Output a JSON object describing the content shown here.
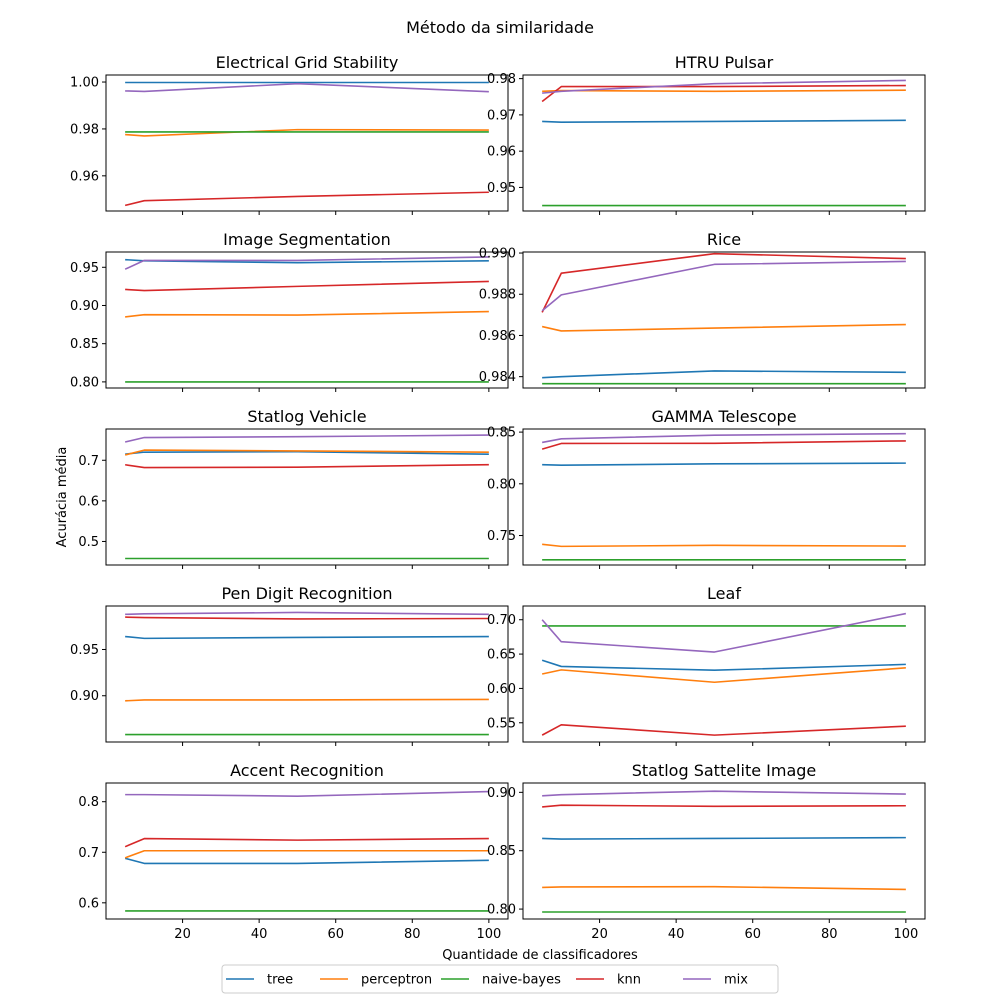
{
  "figure": {
    "title": "Método da similaridade",
    "xlabel": "Quantidade de classificadores",
    "ylabel": "Acurácia média"
  },
  "colors": {
    "tree": "#1f77b4",
    "perceptron": "#ff7f0e",
    "naive-bayes": "#2ca02c",
    "knn": "#d62728",
    "mix": "#9467bd"
  },
  "legend": [
    "tree",
    "perceptron",
    "naive-bayes",
    "knn",
    "mix"
  ],
  "chart_data": [
    {
      "type": "line",
      "title": "Electrical Grid Stability",
      "x": [
        5,
        10,
        50,
        100
      ],
      "xlim": [
        0,
        105
      ],
      "ylim": [
        0.945,
        1.003
      ],
      "yticks": [
        0.96,
        0.98,
        1.0
      ],
      "ytick_labels": [
        "0.96",
        "0.98",
        "1.00"
      ],
      "series": [
        {
          "name": "tree",
          "values": [
            0.9998,
            0.9998,
            0.9998,
            0.9998
          ]
        },
        {
          "name": "perceptron",
          "values": [
            0.9776,
            0.977,
            0.9797,
            0.9795
          ]
        },
        {
          "name": "naive-bayes",
          "values": [
            0.9787,
            0.9787,
            0.9787,
            0.9787
          ]
        },
        {
          "name": "knn",
          "values": [
            0.9474,
            0.9494,
            0.9512,
            0.953
          ]
        },
        {
          "name": "mix",
          "values": [
            0.9962,
            0.996,
            0.9993,
            0.9959
          ]
        }
      ]
    },
    {
      "type": "line",
      "title": "HTRU Pulsar",
      "x": [
        5,
        10,
        50,
        100
      ],
      "xlim": [
        0,
        105
      ],
      "ylim": [
        0.9435,
        0.981
      ],
      "yticks": [
        0.95,
        0.96,
        0.97,
        0.98
      ],
      "ytick_labels": [
        "0.95",
        "0.96",
        "0.97",
        "0.98"
      ],
      "series": [
        {
          "name": "tree",
          "values": [
            0.9682,
            0.968,
            0.9682,
            0.9685
          ]
        },
        {
          "name": "perceptron",
          "values": [
            0.9765,
            0.9767,
            0.9765,
            0.9768
          ]
        },
        {
          "name": "naive-bayes",
          "values": [
            0.945,
            0.945,
            0.945,
            0.945
          ]
        },
        {
          "name": "knn",
          "values": [
            0.9737,
            0.9778,
            0.9778,
            0.9781
          ]
        },
        {
          "name": "mix",
          "values": [
            0.976,
            0.9765,
            0.9786,
            0.9795
          ]
        }
      ]
    },
    {
      "type": "line",
      "title": "Image Segmentation",
      "x": [
        5,
        10,
        50,
        100
      ],
      "xlim": [
        0,
        105
      ],
      "ylim": [
        0.792,
        0.97
      ],
      "yticks": [
        0.8,
        0.85,
        0.9,
        0.95
      ],
      "ytick_labels": [
        "0.80",
        "0.85",
        "0.90",
        "0.95"
      ],
      "series": [
        {
          "name": "tree",
          "values": [
            0.96,
            0.9585,
            0.956,
            0.9585
          ]
        },
        {
          "name": "perceptron",
          "values": [
            0.885,
            0.888,
            0.8875,
            0.892
          ]
        },
        {
          "name": "naive-bayes",
          "values": [
            0.8,
            0.8,
            0.8,
            0.8
          ]
        },
        {
          "name": "knn",
          "values": [
            0.921,
            0.9195,
            0.925,
            0.9315
          ]
        },
        {
          "name": "mix",
          "values": [
            0.9475,
            0.959,
            0.959,
            0.9635
          ]
        }
      ]
    },
    {
      "type": "line",
      "title": "Rice",
      "x": [
        5,
        10,
        50,
        100
      ],
      "xlim": [
        0,
        105
      ],
      "ylim": [
        0.98345,
        0.99005
      ],
      "yticks": [
        0.984,
        0.986,
        0.988,
        0.99
      ],
      "ytick_labels": [
        "0.984",
        "0.986",
        "0.988",
        "0.990"
      ],
      "series": [
        {
          "name": "tree",
          "values": [
            0.98395,
            0.984,
            0.98428,
            0.98421
          ]
        },
        {
          "name": "perceptron",
          "values": [
            0.98643,
            0.98622,
            0.98636,
            0.98653
          ]
        },
        {
          "name": "naive-bayes",
          "values": [
            0.98366,
            0.98366,
            0.98366,
            0.98366
          ]
        },
        {
          "name": "knn",
          "values": [
            0.98712,
            0.98902,
            0.98997,
            0.98973
          ]
        },
        {
          "name": "mix",
          "values": [
            0.9872,
            0.98797,
            0.98945,
            0.98959
          ]
        }
      ]
    },
    {
      "type": "line",
      "title": "Statlog Vehicle",
      "x": [
        5,
        10,
        50,
        100
      ],
      "xlim": [
        0,
        105
      ],
      "ylim": [
        0.442,
        0.777
      ],
      "yticks": [
        0.5,
        0.6,
        0.7
      ],
      "ytick_labels": [
        "0.5",
        "0.6",
        "0.7"
      ],
      "series": [
        {
          "name": "tree",
          "values": [
            0.715,
            0.72,
            0.721,
            0.715
          ]
        },
        {
          "name": "perceptron",
          "values": [
            0.713,
            0.725,
            0.723,
            0.72
          ]
        },
        {
          "name": "naive-bayes",
          "values": [
            0.458,
            0.458,
            0.458,
            0.458
          ]
        },
        {
          "name": "knn",
          "values": [
            0.689,
            0.682,
            0.683,
            0.689
          ]
        },
        {
          "name": "mix",
          "values": [
            0.745,
            0.756,
            0.758,
            0.762
          ]
        }
      ]
    },
    {
      "type": "line",
      "title": "GAMMA Telescope",
      "x": [
        5,
        10,
        50,
        100
      ],
      "xlim": [
        0,
        105
      ],
      "ylim": [
        0.7215,
        0.853
      ],
      "yticks": [
        0.75,
        0.8,
        0.85
      ],
      "ytick_labels": [
        "0.75",
        "0.80",
        "0.85"
      ],
      "series": [
        {
          "name": "tree",
          "values": [
            0.8185,
            0.818,
            0.8193,
            0.82
          ]
        },
        {
          "name": "perceptron",
          "values": [
            0.7415,
            0.7395,
            0.7405,
            0.7398
          ]
        },
        {
          "name": "naive-bayes",
          "values": [
            0.7265,
            0.7265,
            0.7265,
            0.7265
          ]
        },
        {
          "name": "knn",
          "values": [
            0.8335,
            0.839,
            0.8392,
            0.8415
          ]
        },
        {
          "name": "mix",
          "values": [
            0.84,
            0.8435,
            0.847,
            0.8485
          ]
        }
      ]
    },
    {
      "type": "line",
      "title": "Pen Digit Recognition",
      "x": [
        5,
        10,
        50,
        100
      ],
      "xlim": [
        0,
        105
      ],
      "ylim": [
        0.85,
        0.997
      ],
      "yticks": [
        0.9,
        0.95
      ],
      "ytick_labels": [
        "0.90",
        "0.95"
      ],
      "series": [
        {
          "name": "tree",
          "values": [
            0.964,
            0.962,
            0.963,
            0.964
          ]
        },
        {
          "name": "perceptron",
          "values": [
            0.8945,
            0.8955,
            0.8955,
            0.896
          ]
        },
        {
          "name": "naive-bayes",
          "values": [
            0.858,
            0.858,
            0.858,
            0.858
          ]
        },
        {
          "name": "knn",
          "values": [
            0.985,
            0.9845,
            0.983,
            0.9835
          ]
        },
        {
          "name": "mix",
          "values": [
            0.988,
            0.9885,
            0.99,
            0.988
          ]
        }
      ]
    },
    {
      "type": "line",
      "title": "Leaf",
      "x": [
        5,
        10,
        50,
        100
      ],
      "xlim": [
        0,
        105
      ],
      "ylim": [
        0.522,
        0.72
      ],
      "yticks": [
        0.55,
        0.6,
        0.65,
        0.7
      ],
      "ytick_labels": [
        "0.55",
        "0.60",
        "0.65",
        "0.70"
      ],
      "series": [
        {
          "name": "tree",
          "values": [
            0.641,
            0.632,
            0.6265,
            0.635
          ]
        },
        {
          "name": "perceptron",
          "values": [
            0.621,
            0.627,
            0.609,
            0.63
          ]
        },
        {
          "name": "naive-bayes",
          "values": [
            0.691,
            0.691,
            0.691,
            0.691
          ]
        },
        {
          "name": "knn",
          "values": [
            0.532,
            0.547,
            0.532,
            0.545
          ]
        },
        {
          "name": "mix",
          "values": [
            0.7,
            0.668,
            0.653,
            0.709
          ]
        }
      ]
    },
    {
      "type": "line",
      "title": "Accent Recognition",
      "x": [
        5,
        10,
        50,
        100
      ],
      "xlim": [
        0,
        105
      ],
      "ylim": [
        0.568,
        0.837
      ],
      "yticks": [
        0.6,
        0.7,
        0.8
      ],
      "ytick_labels": [
        "0.6",
        "0.7",
        "0.8"
      ],
      "series": [
        {
          "name": "tree",
          "values": [
            0.688,
            0.678,
            0.678,
            0.684
          ]
        },
        {
          "name": "perceptron",
          "values": [
            0.689,
            0.703,
            0.703,
            0.703
          ]
        },
        {
          "name": "naive-bayes",
          "values": [
            0.584,
            0.584,
            0.584,
            0.584
          ]
        },
        {
          "name": "knn",
          "values": [
            0.711,
            0.727,
            0.724,
            0.727
          ]
        },
        {
          "name": "mix",
          "values": [
            0.814,
            0.814,
            0.811,
            0.82
          ]
        }
      ]
    },
    {
      "type": "line",
      "title": "Statlog Sattelite Image",
      "x": [
        5,
        10,
        50,
        100
      ],
      "xlim": [
        0,
        105
      ],
      "ylim": [
        0.7915,
        0.908
      ],
      "yticks": [
        0.8,
        0.85,
        0.9
      ],
      "ytick_labels": [
        "0.80",
        "0.85",
        "0.90"
      ],
      "series": [
        {
          "name": "tree",
          "values": [
            0.8605,
            0.86,
            0.8605,
            0.8612
          ]
        },
        {
          "name": "perceptron",
          "values": [
            0.8185,
            0.819,
            0.8192,
            0.8168
          ]
        },
        {
          "name": "naive-bayes",
          "values": [
            0.7975,
            0.7975,
            0.7975,
            0.7975
          ]
        },
        {
          "name": "knn",
          "values": [
            0.8875,
            0.889,
            0.888,
            0.8885
          ]
        },
        {
          "name": "mix",
          "values": [
            0.897,
            0.898,
            0.901,
            0.8985
          ]
        }
      ]
    }
  ],
  "xticks": [
    20,
    40,
    60,
    80,
    100
  ],
  "xtick_labels": [
    "20",
    "40",
    "60",
    "80",
    "100"
  ]
}
